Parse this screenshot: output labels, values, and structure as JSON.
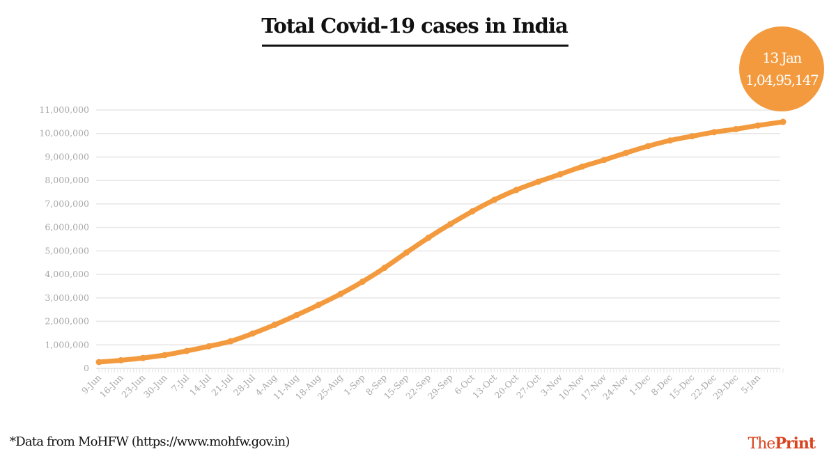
{
  "title": "Total Covid-19 cases in India",
  "callout": {
    "date": "13 Jan",
    "value": "1,04,95,147"
  },
  "footnote": "*Data from MoHFW (https://www.mohfw.gov.in)",
  "logo": {
    "part1": "The",
    "part2": "Print"
  },
  "colors": {
    "line": "#f39a3e",
    "grid": "#e6e6e6",
    "logo": "#d9441f"
  },
  "chart_data": {
    "type": "line",
    "title": "Total Covid-19 cases in India",
    "xlabel": "",
    "ylabel": "",
    "ylim": [
      0,
      11000000
    ],
    "yticks": [
      "0",
      "1,000,000",
      "2,000,000",
      "3,000,000",
      "4,000,000",
      "5,000,000",
      "6,000,000",
      "7,000,000",
      "8,000,000",
      "9,000,000",
      "10,000,000",
      "11,000,000"
    ],
    "xticks": [
      "9-Jun",
      "16-Jun",
      "23-Jun",
      "30-Jun",
      "7-Jul",
      "14-Jul",
      "21-Jul",
      "28-Jul",
      "4-Aug",
      "11-Aug",
      "18-Aug",
      "25-Aug",
      "1-Sep",
      "8-Sep",
      "15-Sep",
      "22-Sep",
      "29-Sep",
      "6-Oct",
      "13-Oct",
      "20-Oct",
      "27-Oct",
      "3-Nov",
      "10-Nov",
      "17-Nov",
      "24-Nov",
      "1-Dec",
      "8-Dec",
      "15-Dec",
      "22-Dec",
      "29-Dec",
      "5-Jan"
    ],
    "grid": true,
    "legend": "none",
    "x": [
      "9-Jun",
      "16-Jun",
      "23-Jun",
      "30-Jun",
      "7-Jul",
      "14-Jul",
      "21-Jul",
      "28-Jul",
      "4-Aug",
      "11-Aug",
      "18-Aug",
      "25-Aug",
      "1-Sep",
      "8-Sep",
      "15-Sep",
      "22-Sep",
      "29-Sep",
      "6-Oct",
      "13-Oct",
      "20-Oct",
      "27-Oct",
      "3-Nov",
      "10-Nov",
      "17-Nov",
      "24-Nov",
      "1-Dec",
      "8-Dec",
      "15-Dec",
      "22-Dec",
      "29-Dec",
      "5-Jan",
      "13-Jan"
    ],
    "values": [
      267000,
      343000,
      440000,
      567000,
      742000,
      936000,
      1155000,
      1483000,
      1855000,
      2268000,
      2702000,
      3167000,
      3691000,
      4280000,
      4930000,
      5562000,
      6145000,
      6685000,
      7175000,
      7597000,
      7946000,
      8266000,
      8591000,
      8874000,
      9177000,
      9463000,
      9703000,
      9884000,
      10056000,
      10187000,
      10341000,
      10495147
    ]
  }
}
